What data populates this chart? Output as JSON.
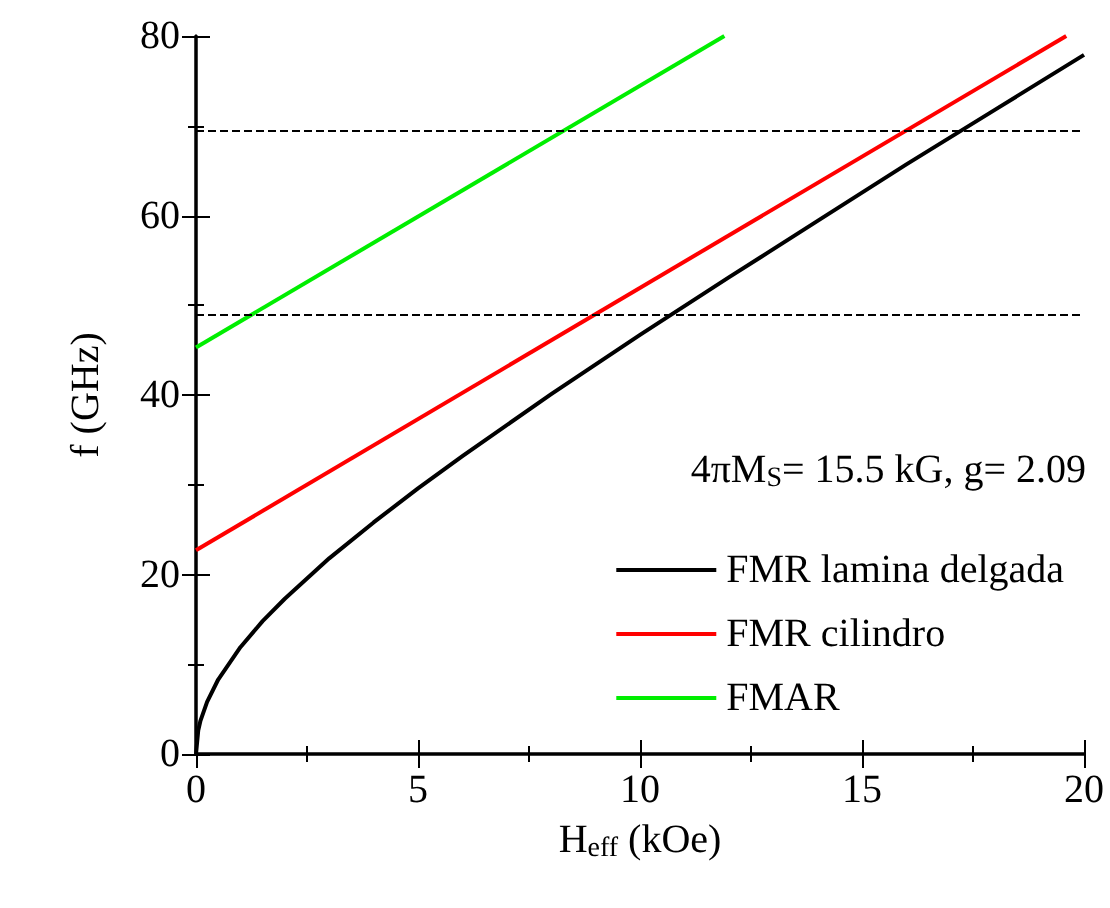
{
  "chart_data": {
    "type": "line",
    "xlabel": "H$_{eff}$ (kOe)",
    "ylabel": "f (GHz)",
    "xlim": [
      0,
      20
    ],
    "xticks": [
      0,
      5,
      10,
      15,
      20
    ],
    "ylim": [
      0,
      80
    ],
    "yticks": [
      0,
      20,
      40,
      60,
      80
    ],
    "grid": false,
    "legend": "bottom right",
    "marker": "none",
    "line_style": "solid",
    "annotations": [
      "4πM$_{S}$= 15.5 kG, g= 2.09"
    ],
    "ref_lines": [
      {
        "axis": "y",
        "value": 49,
        "label": null,
        "color": "#000000",
        "line_style": "dashed"
      },
      {
        "axis": "y",
        "value": 69.5,
        "label": null,
        "color": "#000000",
        "line_style": "dashed"
      }
    ],
    "series": [
      {
        "name": "FMR lamina delgada",
        "color": "#000000",
        "x": [
          0,
          0.05,
          0.1,
          0.25,
          0.5,
          1,
          1.5,
          2,
          3,
          4,
          5,
          6,
          8,
          10,
          12,
          14,
          16,
          18,
          20
        ],
        "values": [
          0,
          2.6,
          3.7,
          5.8,
          8.3,
          11.9,
          14.8,
          17.3,
          21.8,
          25.8,
          29.6,
          33.2,
          40.1,
          46.7,
          53.1,
          59.4,
          65.7,
          71.8,
          77.9
        ]
      },
      {
        "name": "FMR cilindro",
        "color": "#ff0000",
        "x": [
          0,
          19.6
        ],
        "values": [
          22.7,
          80
        ]
      },
      {
        "name": "FMAR",
        "color": "#00ee00",
        "x": [
          0,
          11.9
        ],
        "values": [
          45.3,
          80
        ]
      }
    ]
  }
}
